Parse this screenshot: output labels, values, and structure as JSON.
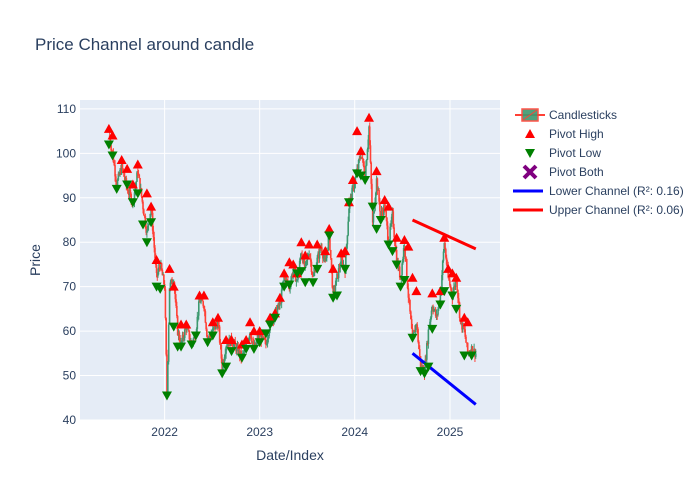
{
  "chart_data": {
    "type": "candlestick",
    "title": "Price Channel around candle",
    "xlabel": "Date/Index",
    "ylabel": "Price",
    "x_range": [
      "2021-02-10",
      "2025-07-12"
    ],
    "ylim": [
      40,
      112
    ],
    "x_ticks": [
      {
        "date": "2022-01-01",
        "label": "2022"
      },
      {
        "date": "2023-01-01",
        "label": "2023"
      },
      {
        "date": "2024-01-01",
        "label": "2024"
      },
      {
        "date": "2025-01-01",
        "label": "2025"
      }
    ],
    "y_ticks": [
      40,
      50,
      60,
      70,
      80,
      90,
      100,
      110
    ],
    "grid": true,
    "legend_position": "top-right, outside plot",
    "colors": {
      "background": "#e5ecf6",
      "increasing": "#3d9970",
      "decreasing": "#ff4136",
      "pivot_high": "#ff0000",
      "pivot_low": "#008000",
      "pivot_both": "#800080",
      "lower_channel": "#0000ff",
      "upper_channel": "#ff0000"
    },
    "price_path": [
      [
        "2021-06-01",
        104
      ],
      [
        "2021-06-15",
        100
      ],
      [
        "2021-07-01",
        93
      ],
      [
        "2021-07-20",
        97
      ],
      [
        "2021-08-10",
        92
      ],
      [
        "2021-09-01",
        89
      ],
      [
        "2021-09-20",
        96
      ],
      [
        "2021-10-10",
        88
      ],
      [
        "2021-10-25",
        82
      ],
      [
        "2021-11-10",
        88
      ],
      [
        "2021-12-01",
        72
      ],
      [
        "2021-12-15",
        75
      ],
      [
        "2022-01-01",
        70
      ],
      [
        "2022-01-10",
        46
      ],
      [
        "2022-01-20",
        70
      ],
      [
        "2022-02-05",
        72
      ],
      [
        "2022-02-20",
        60
      ],
      [
        "2022-03-05",
        57
      ],
      [
        "2022-03-25",
        61
      ],
      [
        "2022-04-15",
        57
      ],
      [
        "2022-05-01",
        60
      ],
      [
        "2022-05-15",
        67
      ],
      [
        "2022-06-01",
        66
      ],
      [
        "2022-06-15",
        58
      ],
      [
        "2022-07-05",
        60
      ],
      [
        "2022-07-25",
        62
      ],
      [
        "2022-08-10",
        52
      ],
      [
        "2022-08-25",
        57
      ],
      [
        "2022-09-15",
        58
      ],
      [
        "2022-10-05",
        56
      ],
      [
        "2022-10-25",
        54
      ],
      [
        "2022-11-10",
        57
      ],
      [
        "2022-11-25",
        60
      ],
      [
        "2022-12-10",
        56
      ],
      [
        "2023-01-01",
        59
      ],
      [
        "2023-01-25",
        57
      ],
      [
        "2023-02-10",
        62
      ],
      [
        "2023-03-01",
        64
      ],
      [
        "2023-03-20",
        66
      ],
      [
        "2023-04-05",
        72
      ],
      [
        "2023-04-25",
        70
      ],
      [
        "2023-05-10",
        74
      ],
      [
        "2023-05-25",
        71
      ],
      [
        "2023-06-10",
        78
      ],
      [
        "2023-06-25",
        74
      ],
      [
        "2023-07-10",
        78
      ],
      [
        "2023-07-25",
        72
      ],
      [
        "2023-08-10",
        76
      ],
      [
        "2023-08-25",
        79
      ],
      [
        "2023-09-10",
        75
      ],
      [
        "2023-09-25",
        82
      ],
      [
        "2023-10-10",
        68
      ],
      [
        "2023-10-25",
        72
      ],
      [
        "2023-11-10",
        76
      ],
      [
        "2023-11-25",
        74
      ],
      [
        "2023-12-10",
        88
      ],
      [
        "2023-12-25",
        92
      ],
      [
        "2024-01-10",
        96
      ],
      [
        "2024-01-25",
        100
      ],
      [
        "2024-02-10",
        95
      ],
      [
        "2024-02-25",
        106
      ],
      [
        "2024-03-10",
        84
      ],
      [
        "2024-03-25",
        94
      ],
      [
        "2024-04-10",
        86
      ],
      [
        "2024-04-25",
        88
      ],
      [
        "2024-05-10",
        80
      ],
      [
        "2024-05-25",
        86
      ],
      [
        "2024-06-10",
        76
      ],
      [
        "2024-06-25",
        72
      ],
      [
        "2024-07-10",
        80
      ],
      [
        "2024-07-25",
        68
      ],
      [
        "2024-08-10",
        58
      ],
      [
        "2024-08-25",
        62
      ],
      [
        "2024-09-10",
        52
      ],
      [
        "2024-09-25",
        51
      ],
      [
        "2024-10-10",
        60
      ],
      [
        "2024-10-25",
        66
      ],
      [
        "2024-11-10",
        63
      ],
      [
        "2024-11-25",
        68
      ],
      [
        "2024-12-10",
        80
      ],
      [
        "2024-12-25",
        72
      ],
      [
        "2025-01-10",
        68
      ],
      [
        "2025-01-25",
        72
      ],
      [
        "2025-02-10",
        62
      ],
      [
        "2025-02-25",
        60
      ],
      [
        "2025-03-10",
        55
      ],
      [
        "2025-03-25",
        56
      ],
      [
        "2025-04-10",
        55
      ]
    ],
    "pivot_high": [
      [
        "2021-06-01",
        105.5
      ],
      [
        "2021-06-15",
        104
      ],
      [
        "2021-07-20",
        98.5
      ],
      [
        "2021-08-10",
        96.5
      ],
      [
        "2021-09-01",
        93
      ],
      [
        "2021-09-20",
        97.5
      ],
      [
        "2021-10-25",
        91
      ],
      [
        "2021-11-10",
        88
      ],
      [
        "2021-12-01",
        76
      ],
      [
        "2022-01-20",
        74
      ],
      [
        "2022-02-05",
        70
      ],
      [
        "2022-03-05",
        61.5
      ],
      [
        "2022-03-25",
        61.5
      ],
      [
        "2022-05-15",
        68
      ],
      [
        "2022-06-01",
        68
      ],
      [
        "2022-07-05",
        62
      ],
      [
        "2022-07-25",
        63
      ],
      [
        "2022-08-25",
        58
      ],
      [
        "2022-09-15",
        58
      ],
      [
        "2022-10-25",
        57
      ],
      [
        "2022-11-10",
        58
      ],
      [
        "2022-11-25",
        62
      ],
      [
        "2022-12-10",
        60
      ],
      [
        "2023-01-01",
        60
      ],
      [
        "2023-02-10",
        63
      ],
      [
        "2023-03-01",
        64
      ],
      [
        "2023-03-20",
        67.5
      ],
      [
        "2023-04-05",
        73
      ],
      [
        "2023-04-25",
        75.5
      ],
      [
        "2023-05-10",
        75
      ],
      [
        "2023-05-25",
        73
      ],
      [
        "2023-06-10",
        80
      ],
      [
        "2023-06-25",
        77
      ],
      [
        "2023-07-10",
        79.5
      ],
      [
        "2023-08-10",
        79.5
      ],
      [
        "2023-09-10",
        78
      ],
      [
        "2023-09-25",
        83
      ],
      [
        "2023-10-10",
        74
      ],
      [
        "2023-11-10",
        77.5
      ],
      [
        "2023-11-25",
        78
      ],
      [
        "2023-12-10",
        89
      ],
      [
        "2023-12-25",
        94
      ],
      [
        "2024-01-10",
        105
      ],
      [
        "2024-01-25",
        100.5
      ],
      [
        "2024-02-25",
        108
      ],
      [
        "2024-03-25",
        96
      ],
      [
        "2024-04-25",
        89.5
      ],
      [
        "2024-05-10",
        88
      ],
      [
        "2024-06-10",
        81
      ],
      [
        "2024-07-10",
        80.5
      ],
      [
        "2024-07-25",
        79
      ],
      [
        "2024-08-10",
        72
      ],
      [
        "2024-08-25",
        69
      ],
      [
        "2024-10-25",
        68.5
      ],
      [
        "2024-11-25",
        69
      ],
      [
        "2024-12-10",
        81
      ],
      [
        "2024-12-25",
        74
      ],
      [
        "2025-01-10",
        73
      ],
      [
        "2025-01-25",
        72
      ],
      [
        "2025-02-25",
        63
      ],
      [
        "2025-03-10",
        62
      ]
    ],
    "pivot_low": [
      [
        "2021-06-01",
        102
      ],
      [
        "2021-06-15",
        99.5
      ],
      [
        "2021-07-01",
        92
      ],
      [
        "2021-08-10",
        93
      ],
      [
        "2021-09-01",
        89
      ],
      [
        "2021-09-20",
        91
      ],
      [
        "2021-10-10",
        84
      ],
      [
        "2021-10-25",
        80
      ],
      [
        "2021-11-10",
        84.5
      ],
      [
        "2021-12-01",
        70
      ],
      [
        "2021-12-15",
        69.5
      ],
      [
        "2022-01-10",
        45.5
      ],
      [
        "2022-02-05",
        61
      ],
      [
        "2022-02-20",
        56.5
      ],
      [
        "2022-03-05",
        56.5
      ],
      [
        "2022-04-15",
        57
      ],
      [
        "2022-05-01",
        59
      ],
      [
        "2022-06-15",
        57.5
      ],
      [
        "2022-07-05",
        59
      ],
      [
        "2022-08-10",
        50.5
      ],
      [
        "2022-08-25",
        52
      ],
      [
        "2022-09-15",
        55.5
      ],
      [
        "2022-10-25",
        54
      ],
      [
        "2022-11-10",
        56
      ],
      [
        "2022-12-10",
        56
      ],
      [
        "2023-01-01",
        57.5
      ],
      [
        "2023-01-25",
        59.5
      ],
      [
        "2023-02-10",
        61.5
      ],
      [
        "2023-03-01",
        63
      ],
      [
        "2023-04-05",
        70
      ],
      [
        "2023-04-25",
        70.5
      ],
      [
        "2023-05-25",
        73
      ],
      [
        "2023-06-10",
        73.5
      ],
      [
        "2023-06-25",
        71
      ],
      [
        "2023-07-25",
        71
      ],
      [
        "2023-08-10",
        74
      ],
      [
        "2023-09-25",
        81.5
      ],
      [
        "2023-10-10",
        67.5
      ],
      [
        "2023-10-25",
        68
      ],
      [
        "2023-11-25",
        74
      ],
      [
        "2023-12-10",
        89
      ],
      [
        "2024-01-10",
        95.5
      ],
      [
        "2024-01-25",
        95
      ],
      [
        "2024-02-10",
        94
      ],
      [
        "2024-03-10",
        88
      ],
      [
        "2024-03-25",
        83
      ],
      [
        "2024-04-10",
        85
      ],
      [
        "2024-05-10",
        79.5
      ],
      [
        "2024-05-25",
        78
      ],
      [
        "2024-06-10",
        75
      ],
      [
        "2024-06-25",
        70
      ],
      [
        "2024-07-10",
        71.5
      ],
      [
        "2024-08-10",
        58.5
      ],
      [
        "2024-09-10",
        51
      ],
      [
        "2024-09-25",
        50.5
      ],
      [
        "2024-10-10",
        52
      ],
      [
        "2024-10-25",
        60.5
      ],
      [
        "2024-11-25",
        66
      ],
      [
        "2024-12-10",
        69
      ],
      [
        "2025-01-10",
        68
      ],
      [
        "2025-01-25",
        65
      ],
      [
        "2025-02-25",
        54.5
      ],
      [
        "2025-03-25",
        54.5
      ]
    ],
    "series": [
      {
        "name": "Candlesticks",
        "symbol": "candle-icon"
      },
      {
        "name": "Pivot High",
        "symbol": "triangle-up-icon"
      },
      {
        "name": "Pivot Low",
        "symbol": "triangle-down-icon"
      },
      {
        "name": "Pivot Both",
        "symbol": "x-icon"
      },
      {
        "name": "Lower Channel (R²: 0.16)",
        "symbol": "line-icon"
      },
      {
        "name": "Upper Channel (R²: 0.06)",
        "symbol": "line-icon"
      }
    ],
    "lower_channel": [
      [
        "2024-08-10",
        55
      ],
      [
        "2025-04-10",
        43.5
      ]
    ],
    "upper_channel": [
      [
        "2024-08-10",
        85
      ],
      [
        "2025-04-10",
        78.5
      ]
    ]
  }
}
